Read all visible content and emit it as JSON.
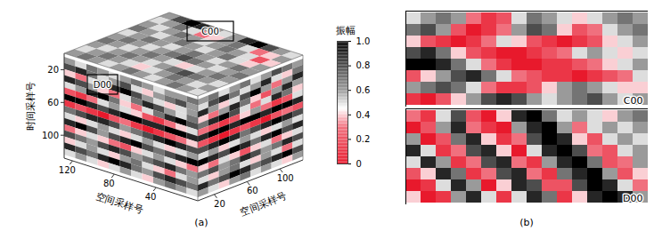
{
  "chart_data": {
    "type": "heatmap",
    "panel_labels": [
      "(a)",
      "(b)"
    ],
    "boxes": [
      "C00",
      "D00"
    ],
    "axes": {
      "time": {
        "label": "时间采样号",
        "lim": [
          0,
          128
        ],
        "ticks": [
          20,
          60,
          100
        ]
      },
      "space_left": {
        "label": "空间采样号",
        "lim": [
          0,
          128
        ],
        "ticks": [
          40,
          80,
          120
        ]
      },
      "space_right": {
        "label": "空间采样号",
        "lim": [
          0,
          128
        ],
        "ticks": [
          20,
          60,
          100
        ]
      }
    },
    "colorbar": {
      "label": "振幅",
      "lim": [
        0,
        1
      ],
      "ticks": [
        0,
        0.2,
        0.4,
        0.6,
        0.8,
        {
          "value": 1,
          "label": "1.0"
        }
      ]
    },
    "cells": {
      "top": [
        [
          0.6,
          0.8,
          1.0,
          0.9,
          0.6,
          0.5,
          0.6,
          0.9,
          1.0,
          0.8,
          0.6,
          0.5
        ],
        [
          0.5,
          0.6,
          0.7,
          0.5,
          0.3,
          0.4,
          0.6,
          0.7,
          0.5,
          0.3,
          0.4,
          0.6
        ],
        [
          0.6,
          0.5,
          0.6,
          0.7,
          0.6,
          0.5,
          0.6,
          0.7,
          0.6,
          0.5,
          0.2,
          0.4
        ],
        [
          0.7,
          0.6,
          0.5,
          0.6,
          0.7,
          0.6,
          0.5,
          0.6,
          0.7,
          0.5,
          0.4,
          0.6
        ],
        [
          0.5,
          0.6,
          0.7,
          0.6,
          0.5,
          0.6,
          0.7,
          0.6,
          0.5,
          0.6,
          0.7,
          0.6
        ],
        [
          0.6,
          0.7,
          0.6,
          0.5,
          0.6,
          0.7,
          0.8,
          0.7,
          0.6,
          0.5,
          0.6,
          0.7
        ],
        [
          0.7,
          0.6,
          0.5,
          0.6,
          0.7,
          0.6,
          0.5,
          0.4,
          0.5,
          0.6,
          0.7,
          0.6
        ],
        [
          0.6,
          0.5,
          0.6,
          0.7,
          0.6,
          0.5,
          0.6,
          0.7,
          0.8,
          0.7,
          0.6,
          0.5
        ],
        [
          0.5,
          0.6,
          0.7,
          0.6,
          0.5,
          0.4,
          0.5,
          0.6,
          0.7,
          0.6,
          0.5,
          0.6
        ],
        [
          0.6,
          0.7,
          0.6,
          0.5,
          0.6,
          0.7,
          0.6,
          0.5,
          0.6,
          0.7,
          0.6,
          0.5
        ]
      ],
      "front_left": [
        [
          0.6,
          0.5,
          0.7,
          0.6,
          0.5,
          0.6,
          0.7,
          0.6,
          0.5,
          0.6,
          0.6,
          0.7
        ],
        [
          0.8,
          0.9,
          0.7,
          0.5,
          0.6,
          0.8,
          0.5,
          0.4,
          0.6,
          0.7,
          0.8,
          0.6
        ],
        [
          0.4,
          0.3,
          0.5,
          0.7,
          0.9,
          1.0,
          0.8,
          0.6,
          0.5,
          0.4,
          0.5,
          0.6
        ],
        [
          0.9,
          0.8,
          0.6,
          0.4,
          0.3,
          0.5,
          0.7,
          0.9,
          0.8,
          0.6,
          0.5,
          0.7
        ],
        [
          0.5,
          0.6,
          0.9,
          1.0,
          0.7,
          0.4,
          0.3,
          0.5,
          0.7,
          0.9,
          1.0,
          0.8
        ],
        [
          0.2,
          0.1,
          0.3,
          0.5,
          0.6,
          0.5,
          0.4,
          0.2,
          0.1,
          0.3,
          0.4,
          0.5
        ],
        [
          1.0,
          1.0,
          0.9,
          0.8,
          0.9,
          1.0,
          1.0,
          0.9,
          0.9,
          1.0,
          1.0,
          0.9
        ],
        [
          0.1,
          0.2,
          0.1,
          0.0,
          0.2,
          0.3,
          0.1,
          0.0,
          0.1,
          0.2,
          0.3,
          0.4
        ],
        [
          0.7,
          0.8,
          0.9,
          0.9,
          0.8,
          0.6,
          0.7,
          0.8,
          0.9,
          1.0,
          0.9,
          0.8
        ],
        [
          0.5,
          0.4,
          0.5,
          0.6,
          0.5,
          0.4,
          0.5,
          0.6,
          0.5,
          0.4,
          0.5,
          0.6
        ],
        [
          0.9,
          1.0,
          0.8,
          0.6,
          0.8,
          0.9,
          1.0,
          0.8,
          0.7,
          0.8,
          0.9,
          1.0
        ],
        [
          0.3,
          0.4,
          0.5,
          0.4,
          0.3,
          0.2,
          0.4,
          0.5,
          0.6,
          0.5,
          0.4,
          0.3
        ],
        [
          0.8,
          0.7,
          0.6,
          0.8,
          0.9,
          0.8,
          0.6,
          0.7,
          0.8,
          0.9,
          0.7,
          0.6
        ],
        [
          0.4,
          0.5,
          0.6,
          0.5,
          0.4,
          0.6,
          0.7,
          0.5,
          0.4,
          0.3,
          0.5,
          0.6
        ],
        [
          0.9,
          0.8,
          0.7,
          0.9,
          1.0,
          0.9,
          0.7,
          0.6,
          0.8,
          0.9,
          0.8,
          0.7
        ],
        [
          0.5,
          0.6,
          0.5,
          0.4,
          0.5,
          0.6,
          0.5,
          0.4,
          0.6,
          0.7,
          0.6,
          0.5
        ]
      ],
      "front_right": [
        [
          0.6,
          0.7,
          0.5,
          0.6,
          0.7,
          0.5,
          0.6,
          0.8,
          0.7,
          0.6
        ],
        [
          0.5,
          0.8,
          0.9,
          0.7,
          0.5,
          0.6,
          0.9,
          0.5,
          0.4,
          0.7
        ],
        [
          0.9,
          0.6,
          0.4,
          0.5,
          0.8,
          1.0,
          0.6,
          0.3,
          0.6,
          0.9
        ],
        [
          0.4,
          0.3,
          0.6,
          0.9,
          0.7,
          0.4,
          0.2,
          0.6,
          0.9,
          0.6
        ],
        [
          0.7,
          0.9,
          1.0,
          0.8,
          0.5,
          0.3,
          0.5,
          0.9,
          0.7,
          0.4
        ],
        [
          0.3,
          0.2,
          0.1,
          0.2,
          0.4,
          0.6,
          0.3,
          0.1,
          0.2,
          0.5
        ],
        [
          0.9,
          1.0,
          1.0,
          0.9,
          1.0,
          1.0,
          0.9,
          1.0,
          1.0,
          0.9
        ],
        [
          0.2,
          0.1,
          0.0,
          0.1,
          0.2,
          0.1,
          0.0,
          0.2,
          0.3,
          0.2
        ],
        [
          0.8,
          0.9,
          1.0,
          0.9,
          0.7,
          0.8,
          0.9,
          1.0,
          0.9,
          0.8
        ],
        [
          0.5,
          0.6,
          0.4,
          0.5,
          0.6,
          0.5,
          0.4,
          0.5,
          0.6,
          0.5
        ],
        [
          1.0,
          0.9,
          0.8,
          1.0,
          0.9,
          0.7,
          0.9,
          1.0,
          0.8,
          0.9
        ],
        [
          0.4,
          0.3,
          0.5,
          0.4,
          0.2,
          0.4,
          0.5,
          0.3,
          0.4,
          0.5
        ],
        [
          0.7,
          0.8,
          0.6,
          0.7,
          0.9,
          0.8,
          0.6,
          0.7,
          0.9,
          0.8
        ],
        [
          0.5,
          0.4,
          0.6,
          0.7,
          0.5,
          0.4,
          0.6,
          0.5,
          0.3,
          0.5
        ],
        [
          0.9,
          0.7,
          0.8,
          1.0,
          0.9,
          0.7,
          0.8,
          0.9,
          1.0,
          0.8
        ],
        [
          0.6,
          0.5,
          0.4,
          0.6,
          0.7,
          0.5,
          0.6,
          0.5,
          0.4,
          0.6
        ]
      ],
      "C00": [
        [
          0.5,
          0.6,
          0.7,
          0.6,
          0.3,
          0.1,
          0.2,
          0.5,
          0.7,
          0.6,
          0.5,
          0.4,
          0.5,
          0.6,
          0.7,
          0.6
        ],
        [
          0.7,
          0.8,
          0.6,
          0.2,
          0.0,
          0.1,
          0.3,
          0.6,
          0.8,
          0.7,
          0.4,
          0.2,
          0.3,
          0.5,
          0.6,
          0.7
        ],
        [
          0.4,
          0.2,
          0.1,
          0.0,
          0.1,
          0.3,
          0.5,
          0.4,
          0.2,
          0.1,
          0.0,
          0.1,
          0.2,
          0.4,
          0.5,
          0.6
        ],
        [
          0.8,
          0.9,
          0.7,
          0.4,
          0.2,
          0.1,
          0.0,
          0.0,
          0.1,
          0.2,
          0.3,
          0.5,
          0.6,
          0.5,
          0.4,
          0.5
        ],
        [
          1.0,
          1.0,
          0.9,
          0.7,
          0.5,
          0.3,
          0.1,
          0.0,
          0.0,
          0.1,
          0.1,
          0.2,
          0.3,
          0.4,
          0.5,
          0.6
        ],
        [
          0.2,
          0.4,
          0.6,
          0.8,
          0.9,
          0.7,
          0.5,
          0.3,
          0.2,
          0.1,
          0.1,
          0.0,
          0.1,
          0.2,
          0.3,
          0.5
        ],
        [
          0.6,
          0.7,
          0.8,
          0.7,
          0.5,
          0.3,
          0.1,
          0.1,
          0.2,
          0.4,
          0.6,
          0.7,
          0.6,
          0.5,
          0.4,
          0.4
        ],
        [
          0.1,
          0.0,
          0.2,
          0.4,
          0.6,
          0.8,
          0.9,
          0.8,
          0.6,
          0.5,
          0.6,
          0.7,
          0.8,
          0.6,
          0.5,
          0.6
        ]
      ],
      "D00": [
        [
          0.3,
          0.1,
          0.5,
          0.8,
          0.2,
          0.0,
          0.4,
          0.9,
          1.0,
          0.7,
          0.5,
          0.6,
          0.5,
          0.4,
          0.6,
          0.7
        ],
        [
          0.0,
          0.2,
          0.6,
          0.9,
          0.3,
          0.1,
          0.0,
          0.6,
          0.9,
          1.0,
          0.6,
          0.3,
          0.5,
          0.6,
          0.5,
          0.6
        ],
        [
          0.6,
          0.0,
          0.2,
          0.7,
          0.9,
          0.4,
          0.1,
          0.3,
          0.8,
          1.0,
          0.9,
          0.4,
          0.2,
          0.5,
          0.6,
          0.5
        ],
        [
          0.9,
          0.5,
          0.1,
          0.3,
          0.8,
          0.9,
          0.4,
          0.0,
          0.5,
          0.9,
          1.0,
          0.8,
          0.3,
          0.2,
          0.5,
          0.6
        ],
        [
          0.5,
          0.9,
          0.6,
          0.1,
          0.3,
          0.8,
          0.9,
          0.3,
          0.1,
          0.6,
          0.9,
          1.0,
          0.7,
          0.2,
          0.3,
          0.6
        ],
        [
          0.2,
          0.4,
          0.9,
          0.7,
          0.1,
          0.3,
          0.8,
          0.9,
          0.3,
          0.1,
          0.7,
          0.9,
          1.0,
          0.6,
          0.2,
          0.4
        ],
        [
          0.0,
          0.1,
          0.5,
          0.9,
          0.6,
          0.0,
          0.4,
          0.9,
          0.8,
          0.2,
          0.2,
          0.8,
          1.0,
          0.9,
          0.5,
          0.3
        ],
        [
          0.4,
          0.0,
          0.1,
          0.6,
          0.9,
          0.5,
          0.1,
          0.5,
          0.9,
          0.7,
          0.1,
          0.4,
          0.9,
          1.0,
          0.9,
          0.6
        ]
      ]
    }
  }
}
